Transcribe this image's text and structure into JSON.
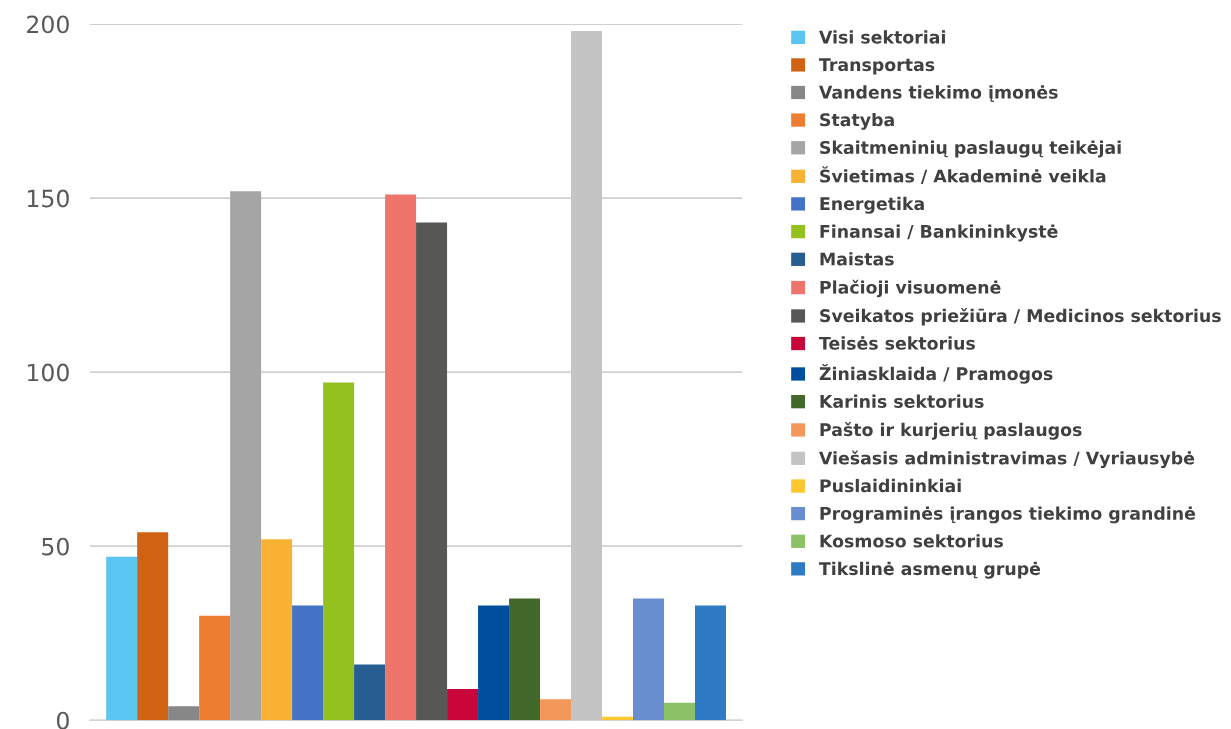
{
  "chart_data": {
    "type": "bar",
    "categories": [
      null
    ],
    "ylim": [
      0,
      200
    ],
    "yticks": [
      0,
      50,
      100,
      150,
      200
    ],
    "grid": "y",
    "legend": "right",
    "series": [
      {
        "name": "Visi sektoriai",
        "color": "#5bc5f2",
        "values": [
          47
        ]
      },
      {
        "name": "Transportas",
        "color": "#d06213",
        "values": [
          54
        ]
      },
      {
        "name": "Vandens tiekimo įmonės",
        "color": "#878787",
        "values": [
          4
        ]
      },
      {
        "name": "Statyba",
        "color": "#ed7d31",
        "values": [
          30
        ]
      },
      {
        "name": "Skaitmeninių paslaugų teikėjai",
        "color": "#a5a5a5",
        "values": [
          152
        ]
      },
      {
        "name": "Švietimas / Akademinė veikla",
        "color": "#f9b233",
        "values": [
          52
        ]
      },
      {
        "name": "Energetika",
        "color": "#4472c4",
        "values": [
          33
        ]
      },
      {
        "name": "Finansai / Bankininkystė",
        "color": "#95c11f",
        "values": [
          97
        ]
      },
      {
        "name": "Maistas",
        "color": "#265e91",
        "values": [
          16
        ]
      },
      {
        "name": "Plačioji visuomenė",
        "color": "#ee746c",
        "values": [
          151
        ]
      },
      {
        "name": "Sveikatos priežiūra / Medicinos sektorius",
        "color": "#575756",
        "values": [
          143
        ]
      },
      {
        "name": "Teisės sektorius",
        "color": "#c8063a",
        "values": [
          9
        ]
      },
      {
        "name": "Žiniasklaida / Pramogos",
        "color": "#004f9f",
        "values": [
          33
        ]
      },
      {
        "name": "Karinis sektorius",
        "color": "#43682b",
        "values": [
          35
        ]
      },
      {
        "name": "Pašto ir kurjerių paslaugos",
        "color": "#f4975a",
        "values": [
          6
        ]
      },
      {
        "name": "Viešasis administravimas / Vyriausybė",
        "color": "#c4c4c4",
        "values": [
          198
        ]
      },
      {
        "name": "Puslaidininkiai",
        "color": "#fdc82f",
        "values": [
          1
        ]
      },
      {
        "name": "Programinės įrangos tiekimo grandinė",
        "color": "#698ed0",
        "values": [
          35
        ]
      },
      {
        "name": "Kosmoso sektorius",
        "color": "#8cc168",
        "values": [
          5
        ]
      },
      {
        "name": "Tikslinė asmenų grupė",
        "color": "#2e7bc4",
        "values": [
          33
        ]
      }
    ]
  }
}
